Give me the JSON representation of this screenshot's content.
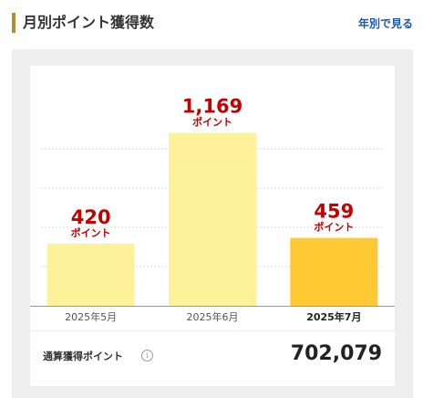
{
  "header": {
    "title": "月別ポイント獲得数",
    "link_label": "年別で見る"
  },
  "colors": {
    "accent": "#b98a2e",
    "link": "#1a56b8",
    "value_text": "#c40000",
    "bar_normal": "#fdf29a",
    "bar_current": "#ffc933",
    "panel_bg": "#eeeeee"
  },
  "chart_data": {
    "type": "bar",
    "categories": [
      "2025年5月",
      "2025年6月",
      "2025年7月"
    ],
    "values": [
      420,
      1169,
      459
    ],
    "value_labels": [
      "420",
      "1,169",
      "459"
    ],
    "unit_label": "ポイント",
    "highlighted_category": "2025年7月",
    "ylim": [
      0,
      1450
    ],
    "grid": true
  },
  "total": {
    "label": "通算獲得ポイント",
    "info_icon": "info-icon",
    "value": "702,079"
  }
}
